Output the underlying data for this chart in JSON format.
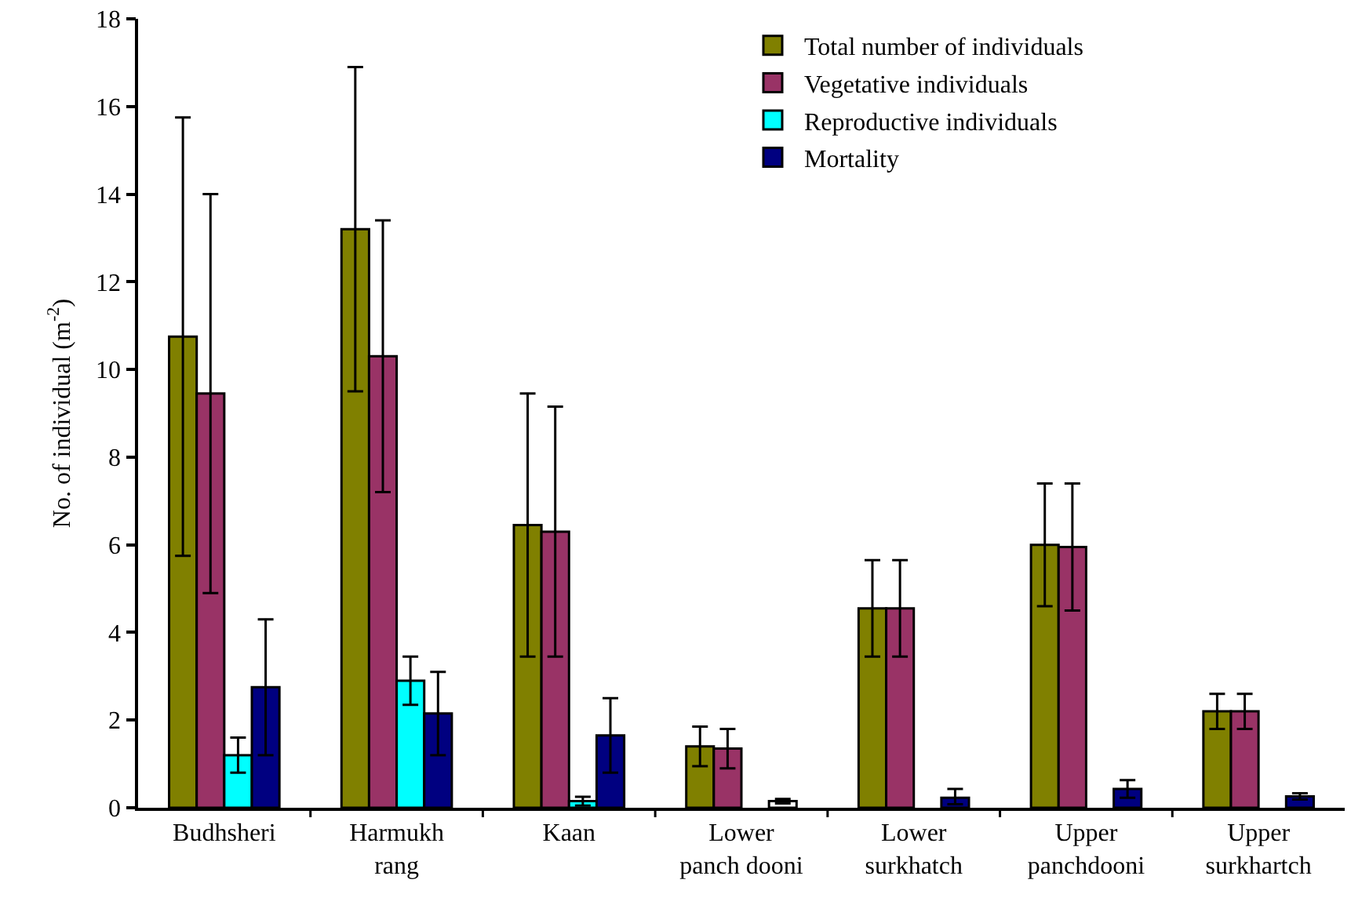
{
  "chart_data": {
    "type": "bar",
    "ylabel": "No. of individual (m$^{-2}$)",
    "categories": [
      "Budhsheri",
      "Harmukh\nrang",
      "Kaan",
      "Lower\npanch dooni",
      "Lower\nsurkhatch",
      "Upper\npanchdooni",
      "Upper\nsurkhartch"
    ],
    "series": [
      {
        "name": "Total number of individuals",
        "color": "#808000",
        "values": [
          10.75,
          13.2,
          6.45,
          1.4,
          4.55,
          6.0,
          2.2
        ],
        "errors": [
          5.0,
          3.7,
          3.0,
          0.45,
          1.1,
          1.4,
          0.4
        ]
      },
      {
        "name": "Vegetative individuals",
        "color": "#993366",
        "values": [
          9.45,
          10.3,
          6.3,
          1.35,
          4.55,
          5.95,
          2.2
        ],
        "errors": [
          4.55,
          3.1,
          2.85,
          0.45,
          1.1,
          1.45,
          0.4
        ]
      },
      {
        "name": "Reproductive individuals",
        "color": "#00ffff",
        "values": [
          1.2,
          2.9,
          0.15,
          null,
          null,
          null,
          null
        ],
        "errors": [
          0.4,
          0.55,
          0.1,
          null,
          null,
          null,
          null
        ]
      },
      {
        "name": "Mortality",
        "colors": [
          "#000080",
          "#000080",
          "#000080",
          "#ffffff",
          "#000080",
          "#000080",
          "#000080"
        ],
        "values": [
          2.75,
          2.15,
          1.65,
          0.15,
          0.23,
          0.43,
          0.26
        ],
        "errors": [
          1.55,
          0.95,
          0.85,
          0.05,
          [
            0.15,
            0.2
          ],
          0.2,
          0.07
        ]
      }
    ],
    "ylim": [
      0,
      18
    ],
    "yticks": [
      0,
      2,
      4,
      6,
      8,
      10,
      12,
      14,
      16,
      18
    ],
    "grid": false,
    "legend": "top right"
  }
}
